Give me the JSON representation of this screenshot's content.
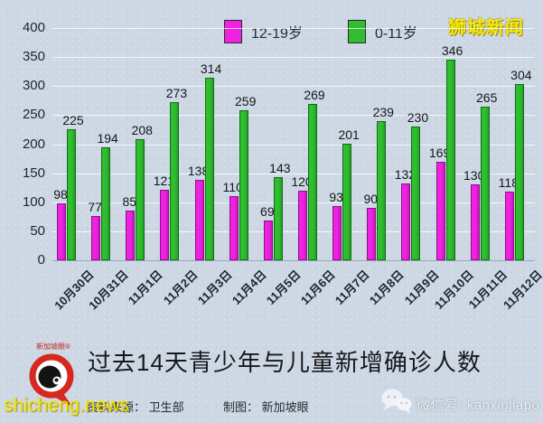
{
  "watermarks": {
    "top_right": "狮城新闻",
    "bottom_left": "shicheng.news",
    "wechat": "微信号: kanxinjiapo"
  },
  "logo": {
    "brand": "新加坡眼"
  },
  "caption": {
    "title": "过去14天青少年与儿童新增确诊人数",
    "source": "资料来源： 卫生部",
    "credit": "制图： 新加坡眼"
  },
  "chart_data": {
    "type": "bar",
    "title": "过去14天青少年与儿童新增确诊人数",
    "categories": [
      "10月30日",
      "10月31日",
      "11月1日",
      "11月2日",
      "11月3日",
      "11月4日",
      "11月5日",
      "11月6日",
      "11月7日",
      "11月8日",
      "11月9日",
      "11月10日",
      "11月11日",
      "11月12日"
    ],
    "series": [
      {
        "name": "12-19岁",
        "color": "#ee22e0",
        "border": "#8f0e88",
        "values": [
          98,
          77,
          85,
          121,
          138,
          110,
          69,
          120,
          93,
          90,
          132,
          169,
          130,
          118
        ]
      },
      {
        "name": "0-11岁",
        "color": "#2fbe2f",
        "border": "#0f6e14",
        "values": [
          225,
          194,
          208,
          273,
          314,
          259,
          143,
          269,
          201,
          239,
          230,
          346,
          265,
          304
        ]
      }
    ],
    "ylim": [
      0,
      400
    ],
    "ytick_step": 50,
    "grid": true,
    "legend_position": "top-center",
    "value_labels": true
  }
}
